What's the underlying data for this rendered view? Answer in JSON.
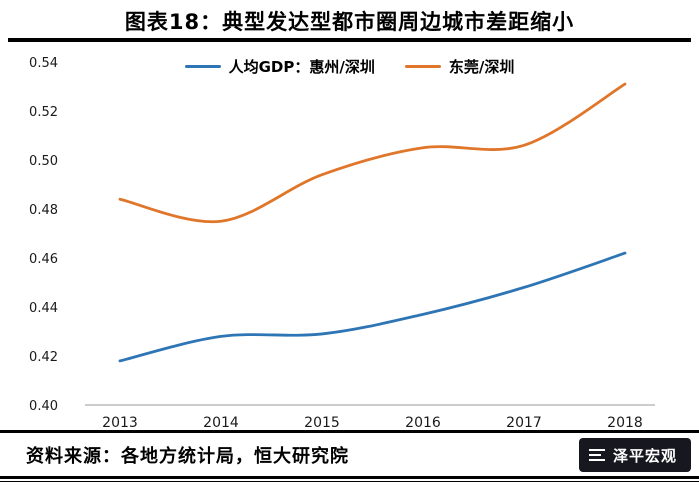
{
  "header": {
    "title": "图表18：典型发达型都市圈周边城市差距缩小"
  },
  "chart_data": {
    "type": "line",
    "title": "图表18：典型发达型都市圈周边城市差距缩小",
    "x": [
      2013,
      2014,
      2015,
      2016,
      2017,
      2018
    ],
    "series": [
      {
        "name": "人均GDP：惠州/深圳",
        "color": "#2e75b6",
        "values": [
          0.418,
          0.428,
          0.429,
          0.437,
          0.448,
          0.462
        ]
      },
      {
        "name": "东莞/深圳",
        "color": "#e0762a",
        "values": [
          0.484,
          0.475,
          0.494,
          0.505,
          0.506,
          0.531
        ]
      }
    ],
    "xlabel": "",
    "ylabel": "",
    "ylim": [
      0.4,
      0.54
    ],
    "ytick_step": 0.02,
    "ytick_format_decimals": 2,
    "grid": false,
    "legend_position": "top-center",
    "axis_color": "#9a9a9a",
    "tick_label_color": "#1a1a1a"
  },
  "footer": {
    "source": "资料来源：各地方统计局，恒大研究院",
    "watermark": "泽平宏观"
  }
}
